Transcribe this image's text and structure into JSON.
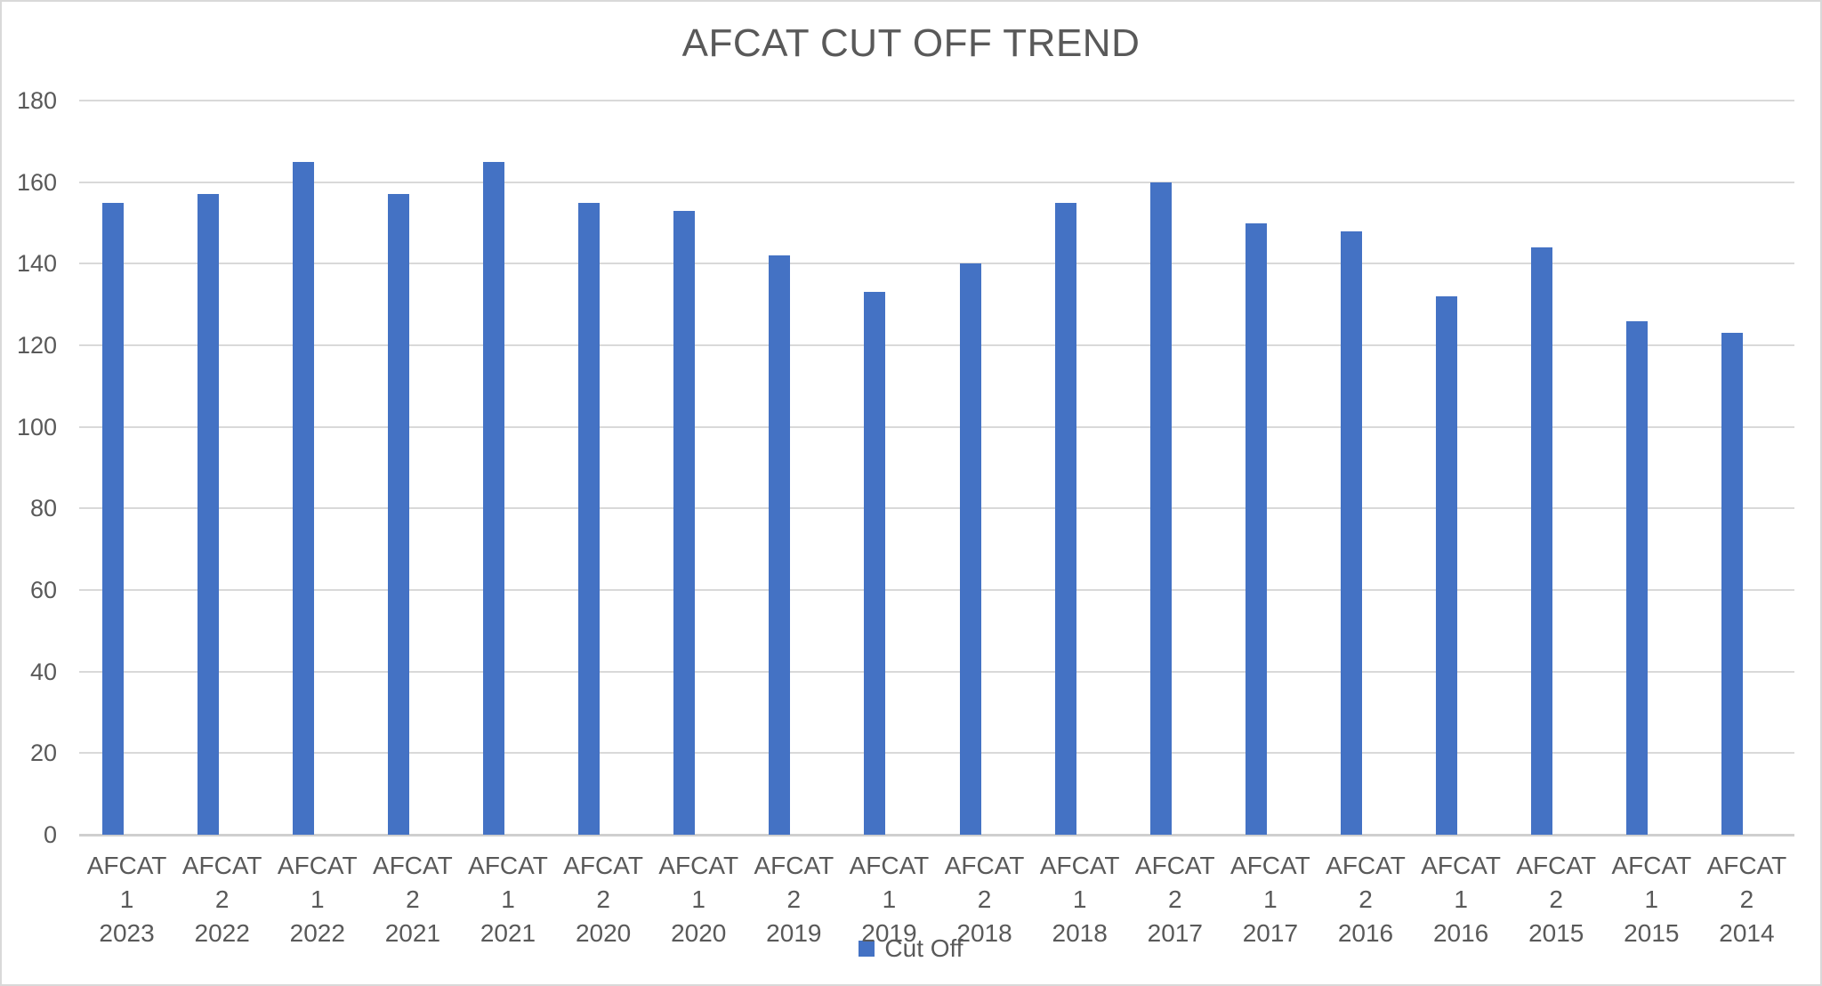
{
  "chart_data": {
    "type": "bar",
    "title": "AFCAT CUT OFF TREND",
    "categories": [
      {
        "exam": "AFCAT 1",
        "year": "2023"
      },
      {
        "exam": "AFCAT 2",
        "year": "2022"
      },
      {
        "exam": "AFCAT 1",
        "year": "2022"
      },
      {
        "exam": "AFCAT 2",
        "year": "2021"
      },
      {
        "exam": "AFCAT 1",
        "year": "2021"
      },
      {
        "exam": "AFCAT 2",
        "year": "2020"
      },
      {
        "exam": "AFCAT 1",
        "year": "2020"
      },
      {
        "exam": "AFCAT 2",
        "year": "2019"
      },
      {
        "exam": "AFCAT 1",
        "year": "2019"
      },
      {
        "exam": "AFCAT 2",
        "year": "2018"
      },
      {
        "exam": "AFCAT 1",
        "year": "2018"
      },
      {
        "exam": "AFCAT 2",
        "year": "2017"
      },
      {
        "exam": "AFCAT 1",
        "year": "2017"
      },
      {
        "exam": "AFCAT 2",
        "year": "2016"
      },
      {
        "exam": "AFCAT 1",
        "year": "2016"
      },
      {
        "exam": "AFCAT 2",
        "year": "2015"
      },
      {
        "exam": "AFCAT 1",
        "year": "2015"
      },
      {
        "exam": "AFCAT 2",
        "year": "2014"
      }
    ],
    "series": [
      {
        "name": "Cut Off",
        "values": [
          155,
          157,
          165,
          157,
          165,
          155,
          153,
          142,
          133,
          140,
          155,
          160,
          150,
          148,
          132,
          144,
          126,
          123
        ]
      }
    ],
    "ylim": [
      0,
      180
    ],
    "yticks": [
      0,
      20,
      40,
      60,
      80,
      100,
      120,
      140,
      160,
      180
    ],
    "xlabel": "",
    "ylabel": "",
    "grid": "horizontal",
    "legend_position": "bottom",
    "colors": {
      "bar": "#4472C4",
      "gridline": "#D9D9D9",
      "axis_line": "#CFCFCF",
      "text": "#595959",
      "border": "#D9D9D9",
      "background": "#FFFFFF"
    }
  }
}
